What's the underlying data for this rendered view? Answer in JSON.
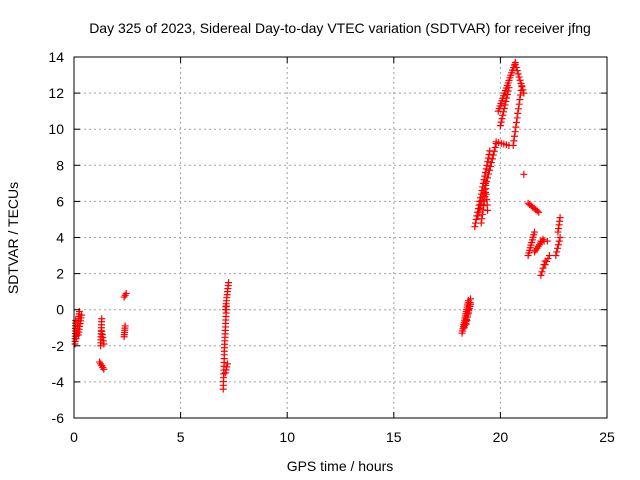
{
  "chart_data": {
    "type": "scatter",
    "title": "Day 325 of 2023, Sidereal Day-to-day VTEC variation (SDTVAR) for receiver jfng",
    "xlabel": "GPS time / hours",
    "ylabel": "SDTVAR / TECUs",
    "xlim": [
      0,
      25
    ],
    "ylim": [
      -6,
      14
    ],
    "x_ticks": [
      0,
      5,
      10,
      15,
      20,
      25
    ],
    "y_ticks": [
      -6,
      -4,
      -2,
      0,
      2,
      4,
      6,
      8,
      10,
      12,
      14
    ],
    "x_tick_labels": [
      "0",
      "5",
      "10",
      "15",
      "20",
      "25"
    ],
    "y_tick_labels": [
      "-6",
      "-4",
      "-2",
      "0",
      "2",
      "4",
      "6",
      "8",
      "10",
      "12",
      "14"
    ],
    "grid": true,
    "marker": "+",
    "color": "#ff0000",
    "segments": [
      {
        "x0": 0.05,
        "y0": -1.9,
        "x1": 0.08,
        "y1": -0.6,
        "n": 10
      },
      {
        "x0": 0.1,
        "y0": -1.6,
        "x1": 0.25,
        "y1": -0.1,
        "n": 12
      },
      {
        "x0": 0.2,
        "y0": -1.4,
        "x1": 0.35,
        "y1": -0.3,
        "n": 8
      },
      {
        "x0": 1.25,
        "y0": -2.0,
        "x1": 1.3,
        "y1": -0.5,
        "n": 10
      },
      {
        "x0": 1.3,
        "y0": -1.2,
        "x1": 1.4,
        "y1": -1.9,
        "n": 5
      },
      {
        "x0": 1.2,
        "y0": -2.9,
        "x1": 1.4,
        "y1": -3.3,
        "n": 5
      },
      {
        "x0": 2.35,
        "y0": 0.7,
        "x1": 2.45,
        "y1": 0.9,
        "n": 3
      },
      {
        "x0": 2.35,
        "y0": -1.5,
        "x1": 2.4,
        "y1": -0.9,
        "n": 6
      },
      {
        "x0": 7.0,
        "y0": -4.4,
        "x1": 7.05,
        "y1": -2.5,
        "n": 10
      },
      {
        "x0": 7.05,
        "y0": -2.3,
        "x1": 7.15,
        "y1": 0.2,
        "n": 14
      },
      {
        "x0": 7.1,
        "y0": 0.0,
        "x1": 7.25,
        "y1": 1.5,
        "n": 10
      },
      {
        "x0": 7.1,
        "y0": -3.5,
        "x1": 7.2,
        "y1": -3.0,
        "n": 4
      },
      {
        "x0": 18.2,
        "y0": -1.3,
        "x1": 18.5,
        "y1": 0.5,
        "n": 16
      },
      {
        "x0": 18.3,
        "y0": -1.0,
        "x1": 18.6,
        "y1": 0.3,
        "n": 12
      },
      {
        "x0": 18.4,
        "y0": -0.8,
        "x1": 18.6,
        "y1": 0.6,
        "n": 8
      },
      {
        "x0": 18.8,
        "y0": 4.6,
        "x1": 19.5,
        "y1": 8.8,
        "n": 22
      },
      {
        "x0": 18.95,
        "y0": 5.2,
        "x1": 19.8,
        "y1": 9.2,
        "n": 20
      },
      {
        "x0": 19.1,
        "y0": 4.8,
        "x1": 19.3,
        "y1": 6.5,
        "n": 8
      },
      {
        "x0": 19.4,
        "y0": 5.5,
        "x1": 19.3,
        "y1": 7.0,
        "n": 6
      },
      {
        "x0": 19.9,
        "y0": 11.0,
        "x1": 20.7,
        "y1": 13.7,
        "n": 20
      },
      {
        "x0": 20.0,
        "y0": 10.2,
        "x1": 20.4,
        "y1": 12.3,
        "n": 12
      },
      {
        "x0": 20.7,
        "y0": 13.6,
        "x1": 21.1,
        "y1": 12.0,
        "n": 10
      },
      {
        "x0": 20.6,
        "y0": 9.1,
        "x1": 21.0,
        "y1": 12.4,
        "n": 14
      },
      {
        "x0": 19.8,
        "y0": 9.3,
        "x1": 20.4,
        "y1": 9.1,
        "n": 6
      },
      {
        "x0": 21.1,
        "y0": 7.5,
        "x1": 21.1,
        "y1": 7.5,
        "n": 1
      },
      {
        "x0": 21.3,
        "y0": 5.9,
        "x1": 21.8,
        "y1": 5.4,
        "n": 8
      },
      {
        "x0": 21.3,
        "y0": 3.0,
        "x1": 21.6,
        "y1": 4.3,
        "n": 10
      },
      {
        "x0": 21.6,
        "y0": 3.2,
        "x1": 22.0,
        "y1": 3.9,
        "n": 8
      },
      {
        "x0": 21.9,
        "y0": 1.9,
        "x1": 22.1,
        "y1": 2.7,
        "n": 5
      },
      {
        "x0": 22.1,
        "y0": 2.5,
        "x1": 22.3,
        "y1": 3.0,
        "n": 4
      },
      {
        "x0": 22.2,
        "y0": 3.8,
        "x1": 21.9,
        "y1": 3.8,
        "n": 3
      },
      {
        "x0": 22.6,
        "y0": 3.0,
        "x1": 22.8,
        "y1": 4.0,
        "n": 6
      },
      {
        "x0": 22.7,
        "y0": 4.3,
        "x1": 22.8,
        "y1": 5.1,
        "n": 5
      }
    ]
  }
}
